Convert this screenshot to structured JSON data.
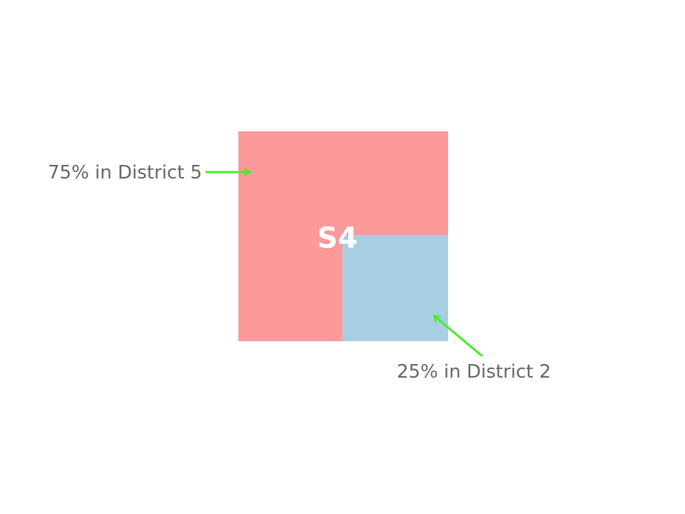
{
  "square": {
    "label": "S4",
    "outer_color": "#fc999b",
    "inner_color": "#a7cee2"
  },
  "callouts": {
    "district5": {
      "text": "75% in District 5",
      "share_percent": 75
    },
    "district2": {
      "text": "25% in District 2",
      "share_percent": 25
    },
    "arrow_color": "#44ee22"
  }
}
